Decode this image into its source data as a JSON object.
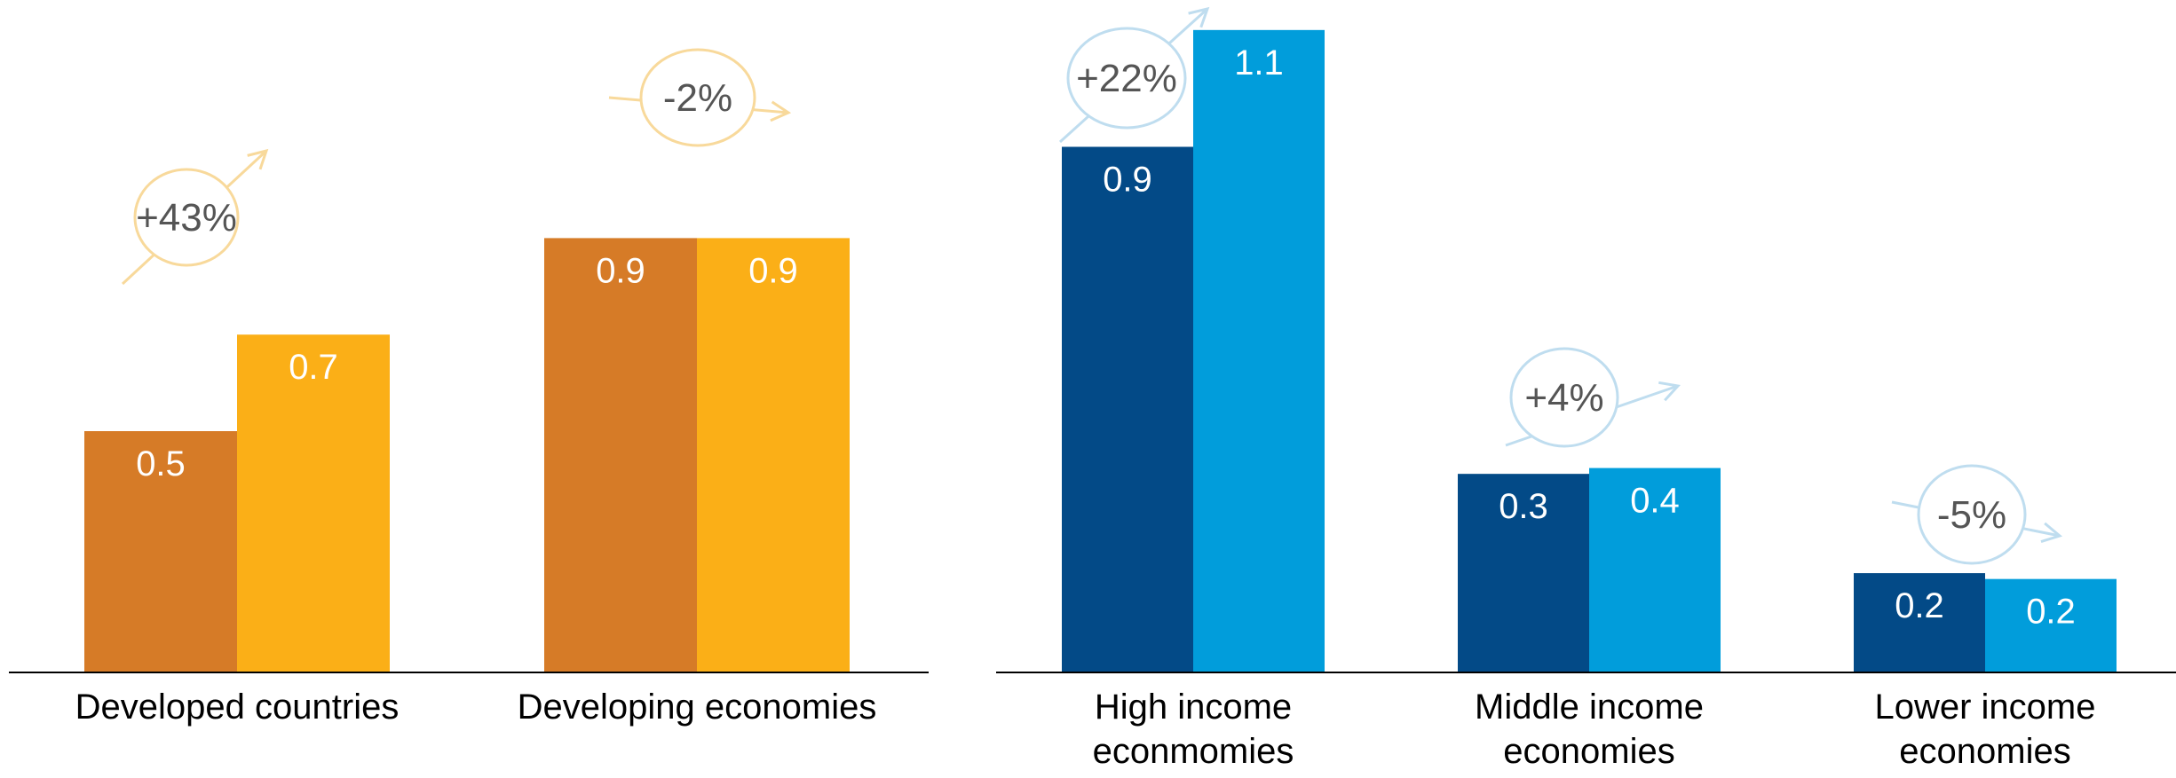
{
  "chart_data": [
    {
      "type": "bar",
      "categories": [
        "Developed countries",
        "Developing economies"
      ],
      "series": [
        {
          "values": [
            0.5,
            0.9
          ],
          "color": "#D67B27"
        },
        {
          "values": [
            0.7,
            0.9
          ],
          "color": "#FBAF17"
        }
      ],
      "data_labels": [
        [
          "0.5",
          "0.9"
        ],
        [
          "0.7",
          "0.9"
        ]
      ],
      "changes": [
        "+43%",
        "-2%"
      ],
      "change_color": "#F8D99B",
      "title": "",
      "xlabel": "",
      "ylabel": "",
      "ylim": [
        0,
        1.25
      ],
      "grid": false,
      "legend": "none"
    },
    {
      "type": "bar",
      "categories": [
        "High income econmomies",
        "Middle income economies",
        "Lower income economies"
      ],
      "category_lines": [
        [
          "High income",
          "econmomies"
        ],
        [
          "Middle income",
          "economies"
        ],
        [
          "Lower income",
          "economies"
        ]
      ],
      "series": [
        {
          "values": [
            0.9,
            0.34,
            0.17
          ],
          "color": "#034A87"
        },
        {
          "values": [
            1.1,
            0.35,
            0.16
          ],
          "color": "#019DDB"
        }
      ],
      "data_labels": [
        [
          "0.9",
          "0.3",
          "0.2"
        ],
        [
          "1.1",
          "0.4",
          "0.2"
        ]
      ],
      "changes": [
        "+22%",
        "+4%",
        "-5%"
      ],
      "change_color": "#BFDDEF",
      "title": "",
      "xlabel": "",
      "ylabel": "",
      "ylim": [
        0,
        1.2
      ],
      "grid": false,
      "legend": "none"
    }
  ]
}
